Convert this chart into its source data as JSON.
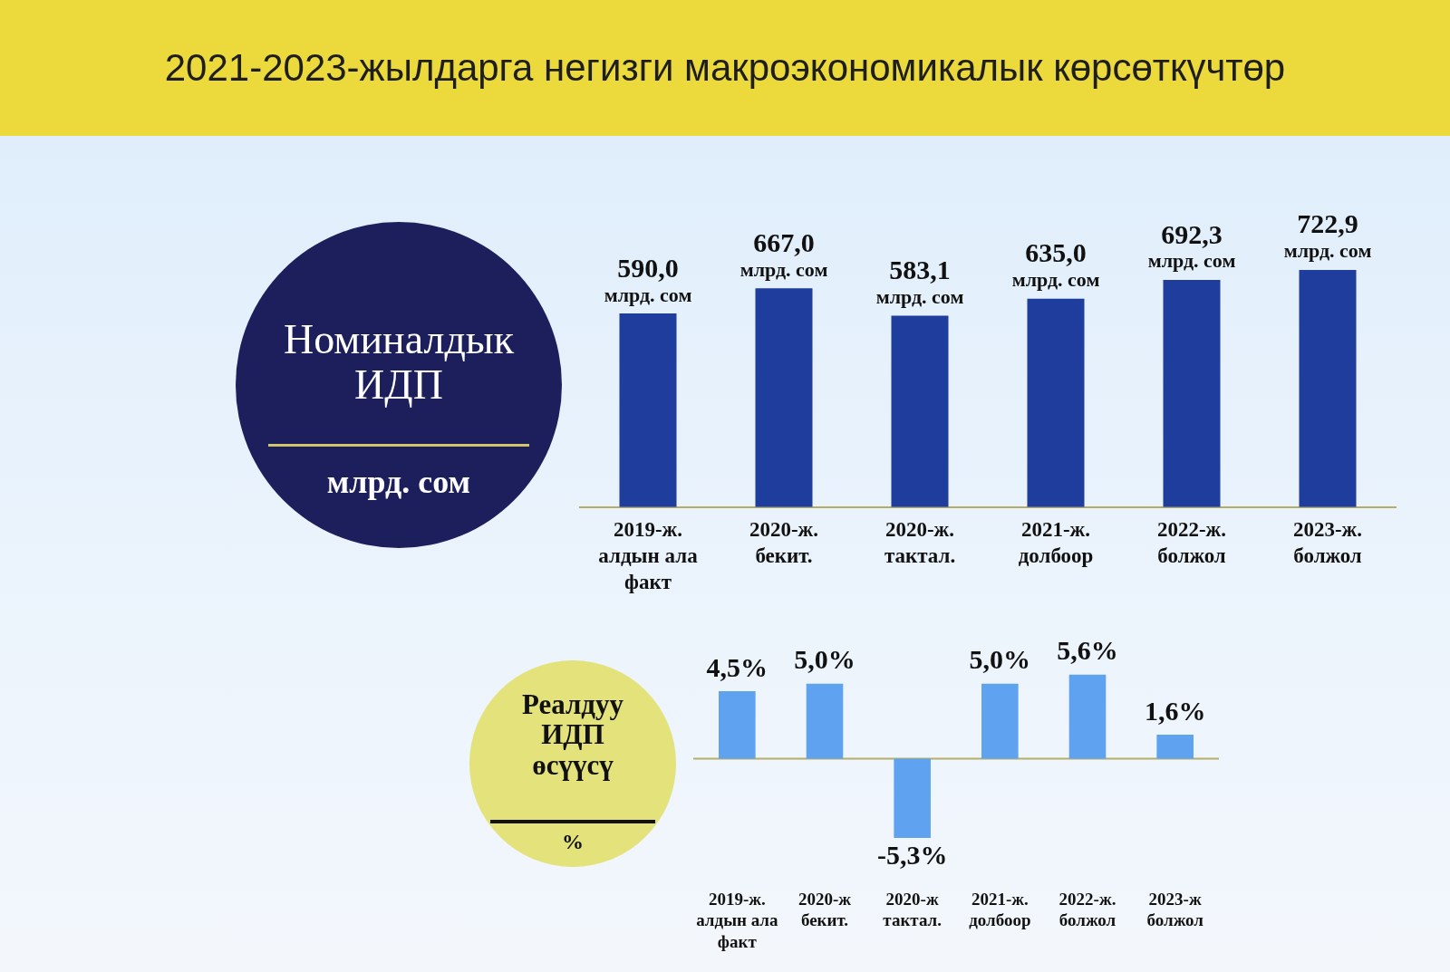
{
  "chart_data": [
    {
      "type": "bar",
      "title": "2021-2023-жылдарга негизги макроэкономикалык көрсөткүчтөр",
      "subtitle": "Номиналдык ИДП",
      "ylabel": "млрд. сом",
      "categories": [
        "2019-ж.\nалдын ала\nфакт",
        "2020-ж.\nбекит.",
        "2020-ж.\nтактал.",
        "2021-ж.\nдолбоор",
        "2022-ж.\nболжол",
        "2023-ж.\nболжол"
      ],
      "values": [
        590.0,
        667.0,
        583.1,
        635.0,
        692.3,
        722.9
      ],
      "value_labels": [
        "590,0\nмлрд. сом",
        "667,0\nмлрд. сом",
        "583,1\nмлрд. сом",
        "635,0\nмлрд. сом",
        "692,3\nмлрд. сом",
        "722,9\nмлрд. сом"
      ],
      "color": "#1f3d9c",
      "tick_labels": "x"
    },
    {
      "type": "bar",
      "title": "Реалдуу ИДП өсүүсү",
      "ylabel": "%",
      "categories": [
        "2019-ж.\nалдын ала\nфакт",
        "2020-ж\nбекит.",
        "2020-ж\nтактал.",
        "2021-ж.\nдолбоор",
        "2022-ж.\nболжол",
        "2023-ж\nболжол"
      ],
      "values": [
        4.5,
        5.0,
        -5.3,
        5.0,
        5.6,
        1.6
      ],
      "value_labels": [
        "4,5%",
        "5,0%",
        "-5,3%",
        "5,0%",
        "5,6%",
        "1,6%"
      ],
      "color": "#5fa2ef",
      "ref_lines": [
        {
          "axis": "y",
          "value": 0,
          "color": "#b6ae68"
        }
      ],
      "tick_labels": "x"
    }
  ]
}
